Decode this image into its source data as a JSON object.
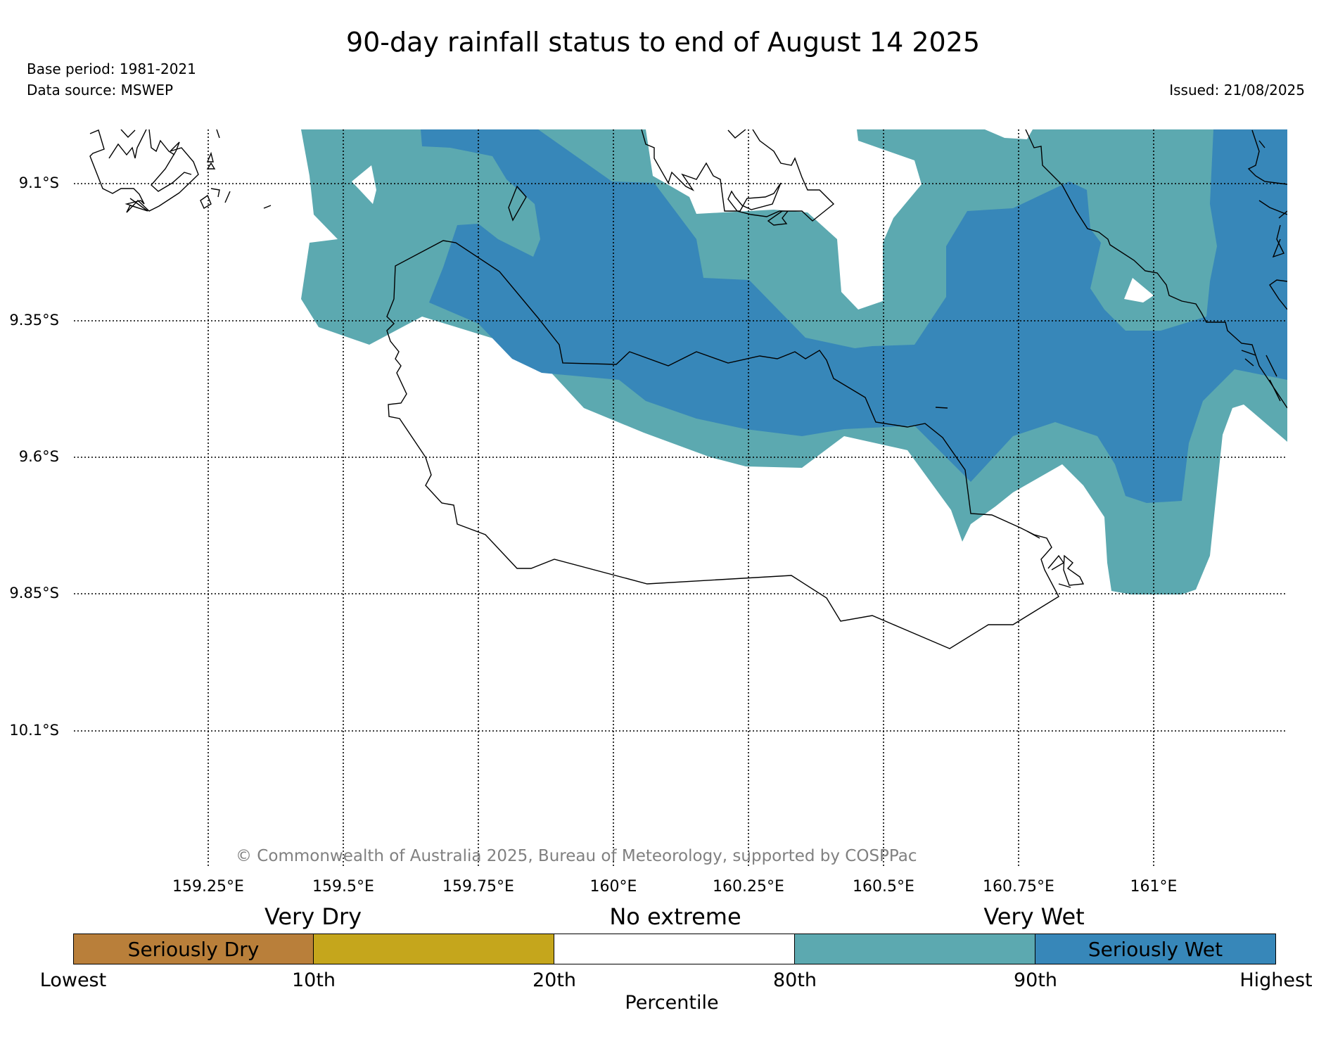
{
  "header": {
    "title": "90-day rainfall status to end of August 14 2025",
    "base_period": "Base period: 1981-2021",
    "data_source": "Data source: MSWEP",
    "issued": "Issued: 21/08/2025"
  },
  "map": {
    "lat_labels": [
      "9.1°S",
      "9.35°S",
      "9.6°S",
      "9.85°S",
      "10.1°S"
    ],
    "lon_labels": [
      "159.25°E",
      "159.5°E",
      "159.75°E",
      "160°E",
      "160.25°E",
      "160.5°E",
      "160.75°E",
      "161°E"
    ],
    "copyright": "© Commonwealth of Australia 2025, Bureau of Meteorology, supported by COSPPac",
    "colors": {
      "percentile_80_90": "#5ca9b0",
      "percentile_90_plus": "#3787b9",
      "coastline": "#000000"
    }
  },
  "legend": {
    "categories": [
      "Very Dry",
      "No extreme",
      "Very Wet"
    ],
    "segments": [
      {
        "label": "Seriously Dry",
        "color": "#b97f3a"
      },
      {
        "label": "",
        "color": "#c5a61c"
      },
      {
        "label": "",
        "color": "#ffffff"
      },
      {
        "label": "",
        "color": "#5ca9b0"
      },
      {
        "label": "Seriously Wet",
        "color": "#3787b9"
      }
    ],
    "ticks": [
      "Lowest",
      "10th",
      "20th",
      "80th",
      "90th",
      "Highest"
    ],
    "axis_label": "Percentile"
  }
}
